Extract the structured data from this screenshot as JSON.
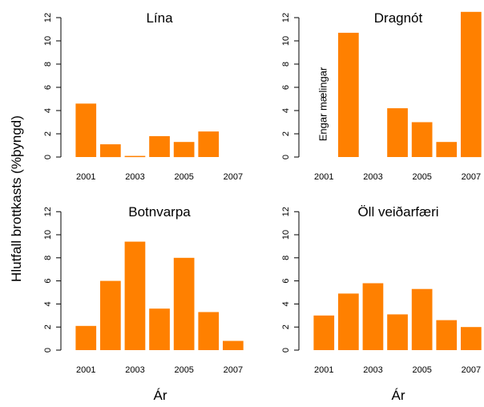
{
  "figure": {
    "ylabel": "Hlutfall brottkasts (%þyngd)",
    "xlabel_left": "Ár",
    "xlabel_right": "Ár"
  },
  "colors": {
    "bar": "#FF8000",
    "axis": "#000000"
  },
  "chart_data": [
    {
      "type": "bar",
      "title": "Lína",
      "categories": [
        "2001",
        "2002",
        "2003",
        "2004",
        "2005",
        "2006",
        "2007"
      ],
      "x_tick_labels": [
        "2001",
        "2003",
        "2005",
        "2007"
      ],
      "values": [
        4.6,
        1.1,
        0.1,
        1.8,
        1.3,
        2.2,
        0
      ],
      "ylim": [
        0,
        12
      ],
      "y_ticks": [
        0,
        2,
        4,
        6,
        8,
        10,
        12
      ]
    },
    {
      "type": "bar",
      "title": "Dragnót",
      "categories": [
        "2001",
        "2002",
        "2003",
        "2004",
        "2005",
        "2006",
        "2007"
      ],
      "x_tick_labels": [
        "2001",
        "2003",
        "2005",
        "2007"
      ],
      "values": [
        null,
        10.7,
        0,
        4.2,
        3.0,
        1.3,
        12.5
      ],
      "annotation": "Engar mælingar",
      "ylim": [
        0,
        12
      ],
      "y_ticks": [
        0,
        2,
        4,
        6,
        8,
        10,
        12
      ]
    },
    {
      "type": "bar",
      "title": "Botnvarpa",
      "categories": [
        "2001",
        "2002",
        "2003",
        "2004",
        "2005",
        "2006",
        "2007"
      ],
      "x_tick_labels": [
        "2001",
        "2003",
        "2005",
        "2007"
      ],
      "values": [
        2.1,
        6.0,
        9.4,
        3.6,
        8.0,
        3.3,
        0.8
      ],
      "ylim": [
        0,
        12
      ],
      "y_ticks": [
        0,
        2,
        4,
        6,
        8,
        10,
        12
      ]
    },
    {
      "type": "bar",
      "title": "Öll veiðarfæri",
      "categories": [
        "2001",
        "2002",
        "2003",
        "2004",
        "2005",
        "2006",
        "2007"
      ],
      "x_tick_labels": [
        "2001",
        "2003",
        "2005",
        "2007"
      ],
      "values": [
        3.0,
        4.9,
        5.8,
        3.1,
        5.3,
        2.6,
        2.0
      ],
      "ylim": [
        0,
        12
      ],
      "y_ticks": [
        0,
        2,
        4,
        6,
        8,
        10,
        12
      ]
    }
  ]
}
